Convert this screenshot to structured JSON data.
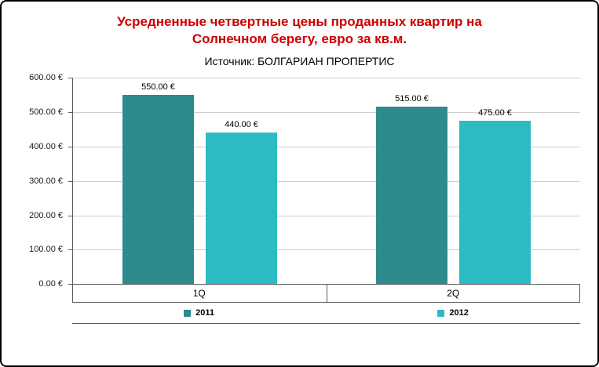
{
  "window": {
    "background": "#FFFFFF",
    "border_color": "#000000"
  },
  "chart_data": {
    "type": "bar",
    "title_line1": "Усредненные четвертные цены проданных квартир на",
    "title_line2": "Солнечном берегу, евро за кв.м.",
    "title_color": "#CC0000",
    "subtitle": "Источник: БОЛГАРИАН ПРОПЕРТИС",
    "categories": [
      "1Q",
      "2Q"
    ],
    "series": [
      {
        "name": "2011",
        "color": "#2E8B8D",
        "values": [
          550,
          515
        ],
        "labels": [
          "550.00 €",
          "515.00 €"
        ]
      },
      {
        "name": "2012",
        "color": "#2BBCC3",
        "values": [
          440,
          475
        ],
        "labels": [
          "440.00 €",
          "475.00 €"
        ]
      }
    ],
    "y_ticks": [
      {
        "value": 600,
        "label": "600.00 €"
      },
      {
        "value": 500,
        "label": "500.00 €"
      },
      {
        "value": 400,
        "label": "400.00 €"
      },
      {
        "value": 300,
        "label": "300.00 €"
      },
      {
        "value": 200,
        "label": "200.00 €"
      },
      {
        "value": 100,
        "label": "100.00 €"
      },
      {
        "value": 0,
        "label": "0.00 €"
      }
    ],
    "ylim": [
      0,
      600
    ],
    "grid": true,
    "legend_position": "bottom"
  }
}
